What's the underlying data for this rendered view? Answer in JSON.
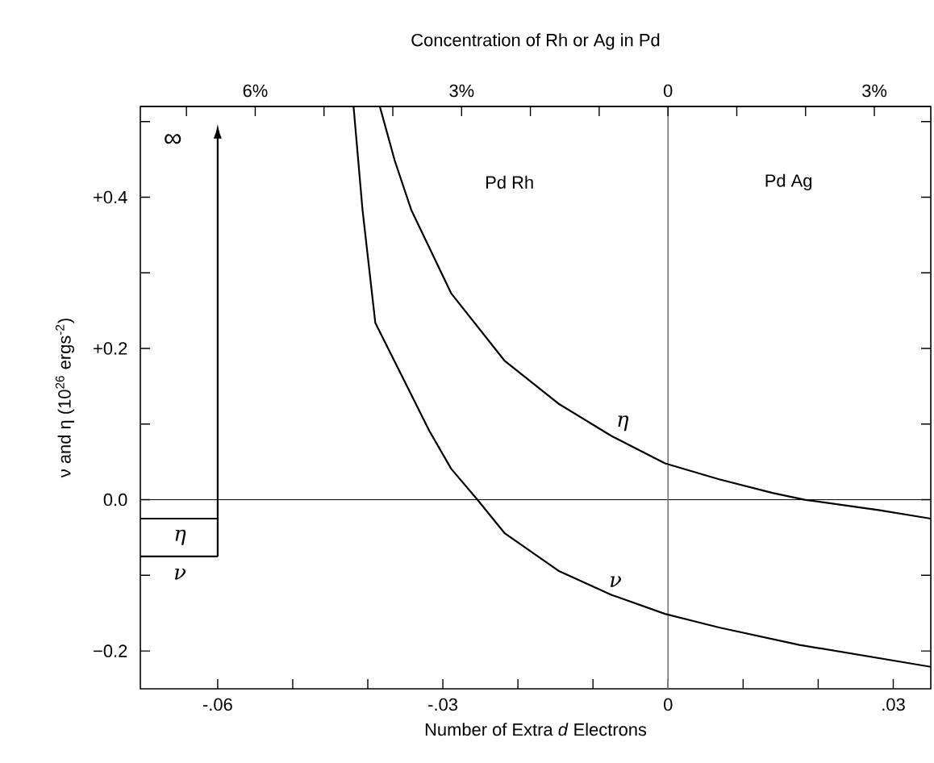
{
  "chart_data": {
    "type": "line",
    "xlabel": "Number of Extra *d* Electrons",
    "x2label": "Concentration of Rh or Ag in Pd",
    "ylabel": "ν and η  (10$^{26}$ ergs$^{-2}$)",
    "xlim": [
      -0.0703,
      0.035
    ],
    "x2lim": [
      7.67,
      -3.82
    ],
    "ylim": [
      -0.25,
      0.52
    ],
    "xticks": [
      {
        "value": -0.06,
        "label": "-.06"
      },
      {
        "value": -0.05,
        "label": null
      },
      {
        "value": -0.04,
        "label": null
      },
      {
        "value": -0.03,
        "label": "-.03"
      },
      {
        "value": -0.02,
        "label": null
      },
      {
        "value": -0.01,
        "label": null
      },
      0,
      {
        "value": 0.01,
        "label": null
      },
      {
        "value": 0.02,
        "label": null
      },
      {
        "value": 0.03,
        "label": ".03"
      }
    ],
    "x2ticks": [
      {
        "value": 7,
        "label": null
      },
      {
        "value": 6,
        "label": "6%"
      },
      {
        "value": 5,
        "label": null
      },
      {
        "value": 4,
        "label": null
      },
      {
        "value": 3,
        "label": "3%"
      },
      {
        "value": 2,
        "label": null
      },
      {
        "value": 1,
        "label": null
      },
      0,
      {
        "value": -1,
        "label": null
      },
      {
        "value": -2,
        "label": null
      },
      {
        "value": -3,
        "label": "3%"
      }
    ],
    "yticks": [
      {
        "value": -0.2,
        "label": "−0.2"
      },
      {
        "value": -0.1,
        "label": null
      },
      {
        "value": 0,
        "label": "0.0"
      },
      {
        "value": 0.1,
        "label": null
      },
      {
        "value": 0.2,
        "label": "+0.2"
      },
      {
        "value": 0.3,
        "label": null
      },
      {
        "value": 0.4,
        "label": "+0.4"
      },
      {
        "value": 0.5,
        "label": null
      }
    ],
    "series": [
      {
        "color": "#000000",
        "x": [
          -0.0384,
          -0.0364,
          -0.0342,
          -0.0289,
          -0.0218,
          -0.0146,
          -0.0075,
          -0.0004,
          0.0068,
          0.0139,
          0.0182,
          0.0282,
          0.035
        ],
        "values": [
          0.52,
          0.448,
          0.383,
          0.273,
          0.184,
          0.127,
          0.084,
          0.048,
          0.027,
          0.009,
          0,
          -0.014,
          -0.025
        ]
      },
      {
        "color": "#000000",
        "x": [
          -0.0419,
          -0.0407,
          -0.039,
          -0.0318,
          -0.0289,
          -0.0254,
          -0.0218,
          -0.0146,
          -0.0075,
          -0.0004,
          0.0068,
          0.0175,
          0.035
        ],
        "values": [
          0.52,
          0.383,
          0.234,
          0.091,
          0.041,
          0,
          -0.044,
          -0.094,
          -0.126,
          -0.151,
          -0.169,
          -0.192,
          -0.221
        ]
      },
      {
        "color": "#000000",
        "x": [
          -0.0703,
          -0.06
        ],
        "values": [
          -0.025,
          -0.025
        ]
      },
      {
        "color": "#000000",
        "x": [
          -0.0703,
          -0.06
        ],
        "values": [
          -0.075,
          -0.075
        ]
      }
    ],
    "ref_lines": [
      {
        "axis": "y",
        "value": 0
      },
      {
        "axis": "x",
        "value": 0
      }
    ],
    "annotations": [
      "∞",
      "η",
      "ν",
      "η",
      "ν",
      "Pd Rh",
      "Pd Ag"
    ],
    "grid": false,
    "marker": "none",
    "line_style": "solid"
  }
}
